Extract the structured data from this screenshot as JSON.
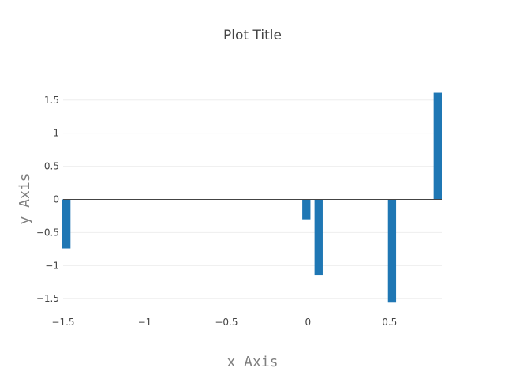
{
  "chart_data": {
    "type": "bar",
    "title": "Plot Title",
    "xlabel": "x Axis",
    "ylabel": "y Axis",
    "x": [
      -1.48,
      -0.01,
      0.065,
      0.515,
      0.795
    ],
    "values": [
      -0.74,
      -0.3,
      -1.14,
      -1.56,
      1.61
    ],
    "xlim": [
      -1.5,
      0.82
    ],
    "ylim": [
      -1.7,
      1.7
    ],
    "xticks": [
      {
        "value": -1.5,
        "label": "−1.5"
      },
      {
        "value": -1,
        "label": "−1"
      },
      {
        "value": -0.5,
        "label": "−0.5"
      },
      {
        "value": 0,
        "label": "0"
      },
      {
        "value": 0.5,
        "label": "0.5"
      }
    ],
    "yticks": [
      {
        "value": 1.5,
        "label": "1.5"
      },
      {
        "value": 1,
        "label": "1"
      },
      {
        "value": 0.5,
        "label": "0.5"
      },
      {
        "value": 0,
        "label": "0"
      },
      {
        "value": -0.5,
        "label": "−0.5"
      },
      {
        "value": -1,
        "label": "−1"
      },
      {
        "value": -1.5,
        "label": "−1.5"
      }
    ],
    "bar_width": 0.05,
    "bar_color": "#1f77b4",
    "grid": true,
    "legend": "none"
  }
}
